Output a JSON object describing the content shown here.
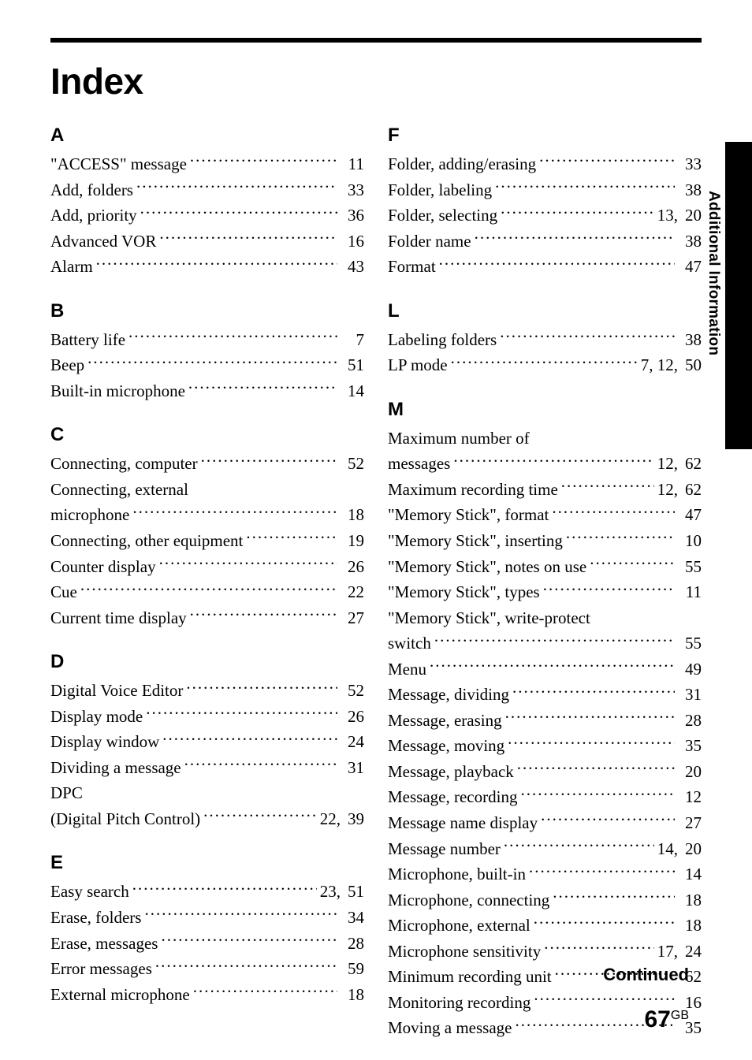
{
  "title": "Index",
  "side_label": "Additional Information",
  "continued_label": "Continued",
  "page_number": "67",
  "page_suffix": "GB",
  "left_sections": [
    {
      "letter": "A",
      "entries": [
        {
          "text": "\"ACCESS\" message",
          "pages": "11"
        },
        {
          "text": "Add, folders",
          "pages": "33"
        },
        {
          "text": "Add, priority",
          "pages": "36"
        },
        {
          "text": "Advanced VOR",
          "pages": "16"
        },
        {
          "text": "Alarm",
          "pages": "43"
        }
      ]
    },
    {
      "letter": "B",
      "entries": [
        {
          "text": "Battery life",
          "pages": "7"
        },
        {
          "text": "Beep",
          "pages": "51"
        },
        {
          "text": "Built-in microphone",
          "pages": "14"
        }
      ]
    },
    {
      "letter": "C",
      "entries": [
        {
          "text": "Connecting, computer",
          "pages": "52"
        },
        {
          "continuation_first": "Connecting, external"
        },
        {
          "text": "microphone",
          "pages": "18"
        },
        {
          "text": "Connecting, other equipment",
          "pages": "19"
        },
        {
          "text": "Counter display",
          "pages": "26"
        },
        {
          "text": "Cue",
          "pages": "22"
        },
        {
          "text": "Current time display",
          "pages": "27"
        }
      ]
    },
    {
      "letter": "D",
      "entries": [
        {
          "text": "Digital Voice Editor",
          "pages": "52"
        },
        {
          "text": "Display mode",
          "pages": "26"
        },
        {
          "text": "Display window",
          "pages": "24"
        },
        {
          "text": "Dividing a message",
          "pages": "31"
        },
        {
          "continuation_first": "DPC"
        },
        {
          "text": "(Digital Pitch Control)",
          "pages": "22,",
          "extra": "39"
        }
      ]
    },
    {
      "letter": "E",
      "entries": [
        {
          "text": "Easy search",
          "pages": "23,",
          "extra": "51"
        },
        {
          "text": "Erase, folders",
          "pages": "34"
        },
        {
          "text": "Erase, messages",
          "pages": "28"
        },
        {
          "text": "Error messages",
          "pages": "59"
        },
        {
          "text": "External microphone",
          "pages": "18"
        }
      ]
    }
  ],
  "right_sections": [
    {
      "letter": "F",
      "entries": [
        {
          "text": "Folder, adding/erasing",
          "pages": "33"
        },
        {
          "text": "Folder, labeling",
          "pages": "38"
        },
        {
          "text": "Folder, selecting",
          "pages": "13,",
          "extra": "20"
        },
        {
          "text": "Folder name",
          "pages": "38"
        },
        {
          "text": "Format",
          "pages": "47"
        }
      ]
    },
    {
      "letter": "L",
      "entries": [
        {
          "text": "Labeling folders",
          "pages": "38"
        },
        {
          "text": "LP mode",
          "pages": "7,  12,",
          "extra": "50"
        }
      ]
    },
    {
      "letter": "M",
      "entries": [
        {
          "continuation_first": "Maximum number of"
        },
        {
          "text": "messages",
          "pages": "12,",
          "extra": "62"
        },
        {
          "text": "Maximum recording time",
          "pages": "12,",
          "extra": "62"
        },
        {
          "text": "\"Memory Stick\", format",
          "pages": "47"
        },
        {
          "text": "\"Memory Stick\", inserting",
          "pages": "10"
        },
        {
          "text": "\"Memory Stick\", notes on use",
          "pages": "55"
        },
        {
          "text": "\"Memory Stick\", types",
          "pages": "11"
        },
        {
          "continuation_first": "\"Memory Stick\", write-protect"
        },
        {
          "text": "switch",
          "pages": "55"
        },
        {
          "text": "Menu",
          "pages": "49"
        },
        {
          "text": "Message, dividing",
          "pages": "31"
        },
        {
          "text": "Message, erasing",
          "pages": "28"
        },
        {
          "text": "Message, moving",
          "pages": "35"
        },
        {
          "text": "Message, playback",
          "pages": "20"
        },
        {
          "text": "Message, recording",
          "pages": "12"
        },
        {
          "text": "Message name display",
          "pages": "27"
        },
        {
          "text": "Message number",
          "pages": "14,",
          "extra": "20"
        },
        {
          "text": "Microphone, built-in",
          "pages": "14"
        },
        {
          "text": "Microphone, connecting",
          "pages": "18"
        },
        {
          "text": "Microphone, external",
          "pages": "18"
        },
        {
          "text": "Microphone sensitivity",
          "pages": "17,",
          "extra": "24"
        },
        {
          "text": "Minimum recording unit",
          "pages": "62"
        },
        {
          "text": "Monitoring recording",
          "pages": "16"
        },
        {
          "text": "Moving a message",
          "pages": "35"
        }
      ]
    }
  ]
}
